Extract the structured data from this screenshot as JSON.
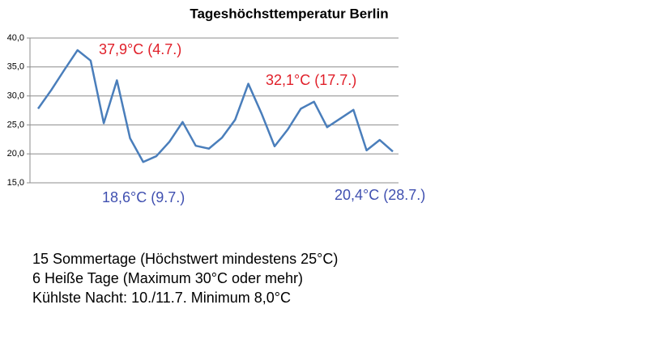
{
  "chart_data": {
    "type": "line",
    "title": "Tageshöchsttemperatur Berlin",
    "series": [
      {
        "color": "#4a7ebb",
        "values": [
          27.8,
          31.0,
          34.5,
          37.9,
          36.1,
          25.3,
          32.7,
          22.7,
          18.6,
          19.6,
          22.1,
          25.5,
          21.4,
          20.9,
          22.8,
          25.9,
          32.1,
          27.0,
          21.3,
          24.2,
          27.8,
          29.0,
          24.6,
          26.1,
          27.6,
          20.6,
          22.4,
          20.4
        ]
      }
    ],
    "ylim": [
      15,
      40
    ],
    "yticks": [
      {
        "value": 15,
        "label": "15,0"
      },
      {
        "value": 20,
        "label": "20,0"
      },
      {
        "value": 25,
        "label": "25,0"
      },
      {
        "value": 30,
        "label": "30,0"
      },
      {
        "value": 35,
        "label": "35,0"
      },
      {
        "value": 40,
        "label": "40,0"
      }
    ],
    "grid": true,
    "annotations": [
      {
        "text": "37,9°C (4.7.)",
        "color": "#e0202a"
      },
      {
        "text": "32,1°C (17.7.)",
        "color": "#e0202a"
      },
      {
        "text": "18,6°C (9.7.)",
        "color": "#4050b0"
      },
      {
        "text": "20,4°C (28.7.)",
        "color": "#4050b0"
      }
    ]
  },
  "notes": [
    "15 Sommertage (Höchstwert mindestens 25°C)",
    "6 Heiße Tage (Maximum 30°C oder mehr)",
    "Kühlste Nacht: 10./11.7. Minimum 8,0°C"
  ]
}
